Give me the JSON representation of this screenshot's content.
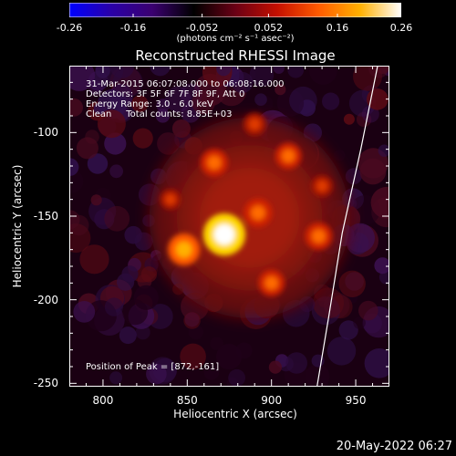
{
  "colorbar": {
    "ticks": [
      "-0.26",
      "-0.16",
      "-0.052",
      "0.052",
      "0.16",
      "0.26"
    ],
    "tick_values": [
      -0.26,
      -0.16,
      -0.052,
      0.052,
      0.16,
      0.26
    ],
    "range": [
      -0.26,
      0.26
    ],
    "units": "(photons cm⁻² s⁻¹ asec⁻²)",
    "colors": [
      "#0000ff",
      "#2a00a8",
      "#3b0070",
      "#000000",
      "#6a0015",
      "#c40f00",
      "#ff5a00",
      "#ffb000",
      "#ffffff"
    ]
  },
  "chart_data": {
    "type": "heatmap",
    "title": "Reconstructed RHESSI Image",
    "xlabel": "Heliocentric X (arcsec)",
    "ylabel": "Heliocentric Y (arcsec)",
    "xlim": [
      780,
      970
    ],
    "ylim": [
      -252,
      -60
    ],
    "xticks": [
      "800",
      "850",
      "900",
      "950"
    ],
    "yticks": [
      "-100",
      "-150",
      "-200",
      "-250"
    ],
    "annotations": [
      "31-Mar-2015 06:07:08.000 to 06:08:16.000",
      "Detectors: 3F 5F 6F 7F 8F 9F, Att 0",
      "Energy Range: 3.0 - 6.0 keV",
      "Clean     Total counts: 8.85E+03"
    ],
    "peak_label": "Position of Peak = [872,-161]",
    "peak": {
      "x": 872,
      "y": -161,
      "value": 0.26
    },
    "sources": [
      {
        "x": 872,
        "y": -161,
        "value": 0.26
      },
      {
        "x": 848,
        "y": -170,
        "value": 0.17
      },
      {
        "x": 866,
        "y": -118,
        "value": 0.13
      },
      {
        "x": 892,
        "y": -148,
        "value": 0.14
      },
      {
        "x": 910,
        "y": -114,
        "value": 0.12
      },
      {
        "x": 928,
        "y": -162,
        "value": 0.13
      },
      {
        "x": 900,
        "y": -190,
        "value": 0.12
      },
      {
        "x": 890,
        "y": -95,
        "value": 0.09
      },
      {
        "x": 840,
        "y": -140,
        "value": 0.07
      },
      {
        "x": 930,
        "y": -132,
        "value": 0.08
      }
    ],
    "limb_curve": {
      "x": [
        963,
        953,
        942,
        934,
        927
      ],
      "y": [
        -60,
        -110,
        -160,
        -210,
        -252
      ]
    }
  },
  "timestamp": "20-May-2022 06:27"
}
